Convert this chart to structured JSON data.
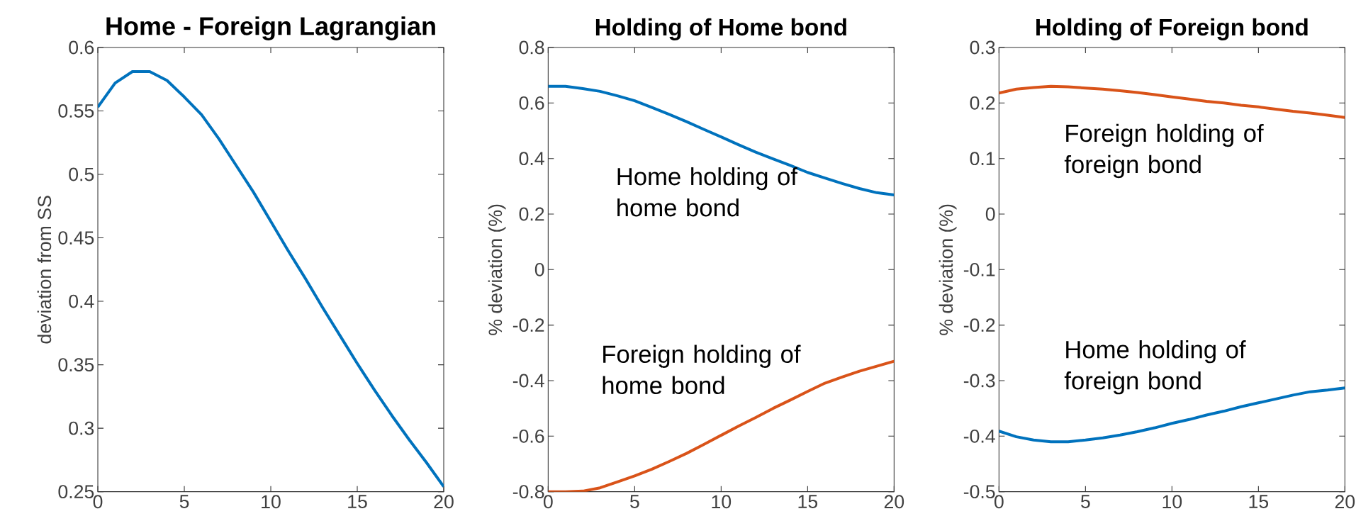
{
  "chart_data": [
    {
      "type": "line",
      "title": "Home - Foreign Lagrangian",
      "ylabel": "deviation from SS",
      "x": [
        0,
        1,
        2,
        3,
        4,
        5,
        6,
        7,
        8,
        9,
        10,
        11,
        12,
        13,
        14,
        15,
        16,
        17,
        18,
        19,
        20
      ],
      "xlim": [
        0,
        20
      ],
      "xticks": [
        0,
        5,
        10,
        15,
        20
      ],
      "ylim": [
        0.25,
        0.6
      ],
      "yticks": [
        0.25,
        0.3,
        0.35,
        0.4,
        0.45,
        0.5,
        0.55,
        0.6
      ],
      "series": [
        {
          "color": "#0072bd",
          "values": [
            0.553,
            0.572,
            0.581,
            0.581,
            0.574,
            0.561,
            0.547,
            0.528,
            0.507,
            0.486,
            0.463,
            0.44,
            0.418,
            0.395,
            0.373,
            0.351,
            0.33,
            0.31,
            0.291,
            0.273,
            0.254
          ]
        }
      ]
    },
    {
      "type": "line",
      "title": "Holding of Home bond",
      "ylabel": "% deviation (%)",
      "x": [
        0,
        1,
        2,
        3,
        4,
        5,
        6,
        7,
        8,
        9,
        10,
        11,
        12,
        13,
        14,
        15,
        16,
        17,
        18,
        19,
        20
      ],
      "xlim": [
        0,
        20
      ],
      "xticks": [
        0,
        5,
        10,
        15,
        20
      ],
      "ylim": [
        -0.8,
        0.8
      ],
      "yticks": [
        -0.8,
        -0.6,
        -0.4,
        -0.2,
        0,
        0.2,
        0.4,
        0.6,
        0.8
      ],
      "series": [
        {
          "name": "Home holding of home bond",
          "color": "#0072bd",
          "values": [
            0.66,
            0.66,
            0.652,
            0.642,
            0.626,
            0.608,
            0.584,
            0.559,
            0.533,
            0.505,
            0.478,
            0.45,
            0.423,
            0.399,
            0.375,
            0.35,
            0.33,
            0.31,
            0.292,
            0.277,
            0.269
          ]
        },
        {
          "name": "Foreign holding of home bond",
          "color": "#d95319",
          "values": [
            -0.8,
            -0.8,
            -0.798,
            -0.786,
            -0.765,
            -0.743,
            -0.719,
            -0.691,
            -0.662,
            -0.63,
            -0.597,
            -0.564,
            -0.533,
            -0.5,
            -0.47,
            -0.439,
            -0.409,
            -0.387,
            -0.366,
            -0.348,
            -0.33
          ]
        }
      ]
    },
    {
      "type": "line",
      "title": "Holding of Foreign bond",
      "ylabel": "% deviation (%)",
      "x": [
        0,
        1,
        2,
        3,
        4,
        5,
        6,
        7,
        8,
        9,
        10,
        11,
        12,
        13,
        14,
        15,
        16,
        17,
        18,
        19,
        20
      ],
      "xlim": [
        0,
        20
      ],
      "xticks": [
        0,
        5,
        10,
        15,
        20
      ],
      "ylim": [
        -0.5,
        0.3
      ],
      "yticks": [
        -0.5,
        -0.4,
        -0.3,
        -0.2,
        -0.1,
        0,
        0.1,
        0.2,
        0.3
      ],
      "series": [
        {
          "name": "Home holding of foreign bond",
          "color": "#0072bd",
          "values": [
            -0.391,
            -0.401,
            -0.407,
            -0.41,
            -0.41,
            -0.407,
            -0.403,
            -0.398,
            -0.392,
            -0.385,
            -0.377,
            -0.37,
            -0.362,
            -0.355,
            -0.347,
            -0.34,
            -0.333,
            -0.326,
            -0.32,
            -0.317,
            -0.313
          ]
        },
        {
          "name": "Foreign holding of foreign bond",
          "color": "#d95319",
          "values": [
            0.218,
            0.225,
            0.228,
            0.23,
            0.229,
            0.227,
            0.225,
            0.222,
            0.219,
            0.215,
            0.211,
            0.207,
            0.203,
            0.2,
            0.196,
            0.193,
            0.189,
            0.185,
            0.182,
            0.178,
            0.174
          ]
        }
      ]
    }
  ]
}
